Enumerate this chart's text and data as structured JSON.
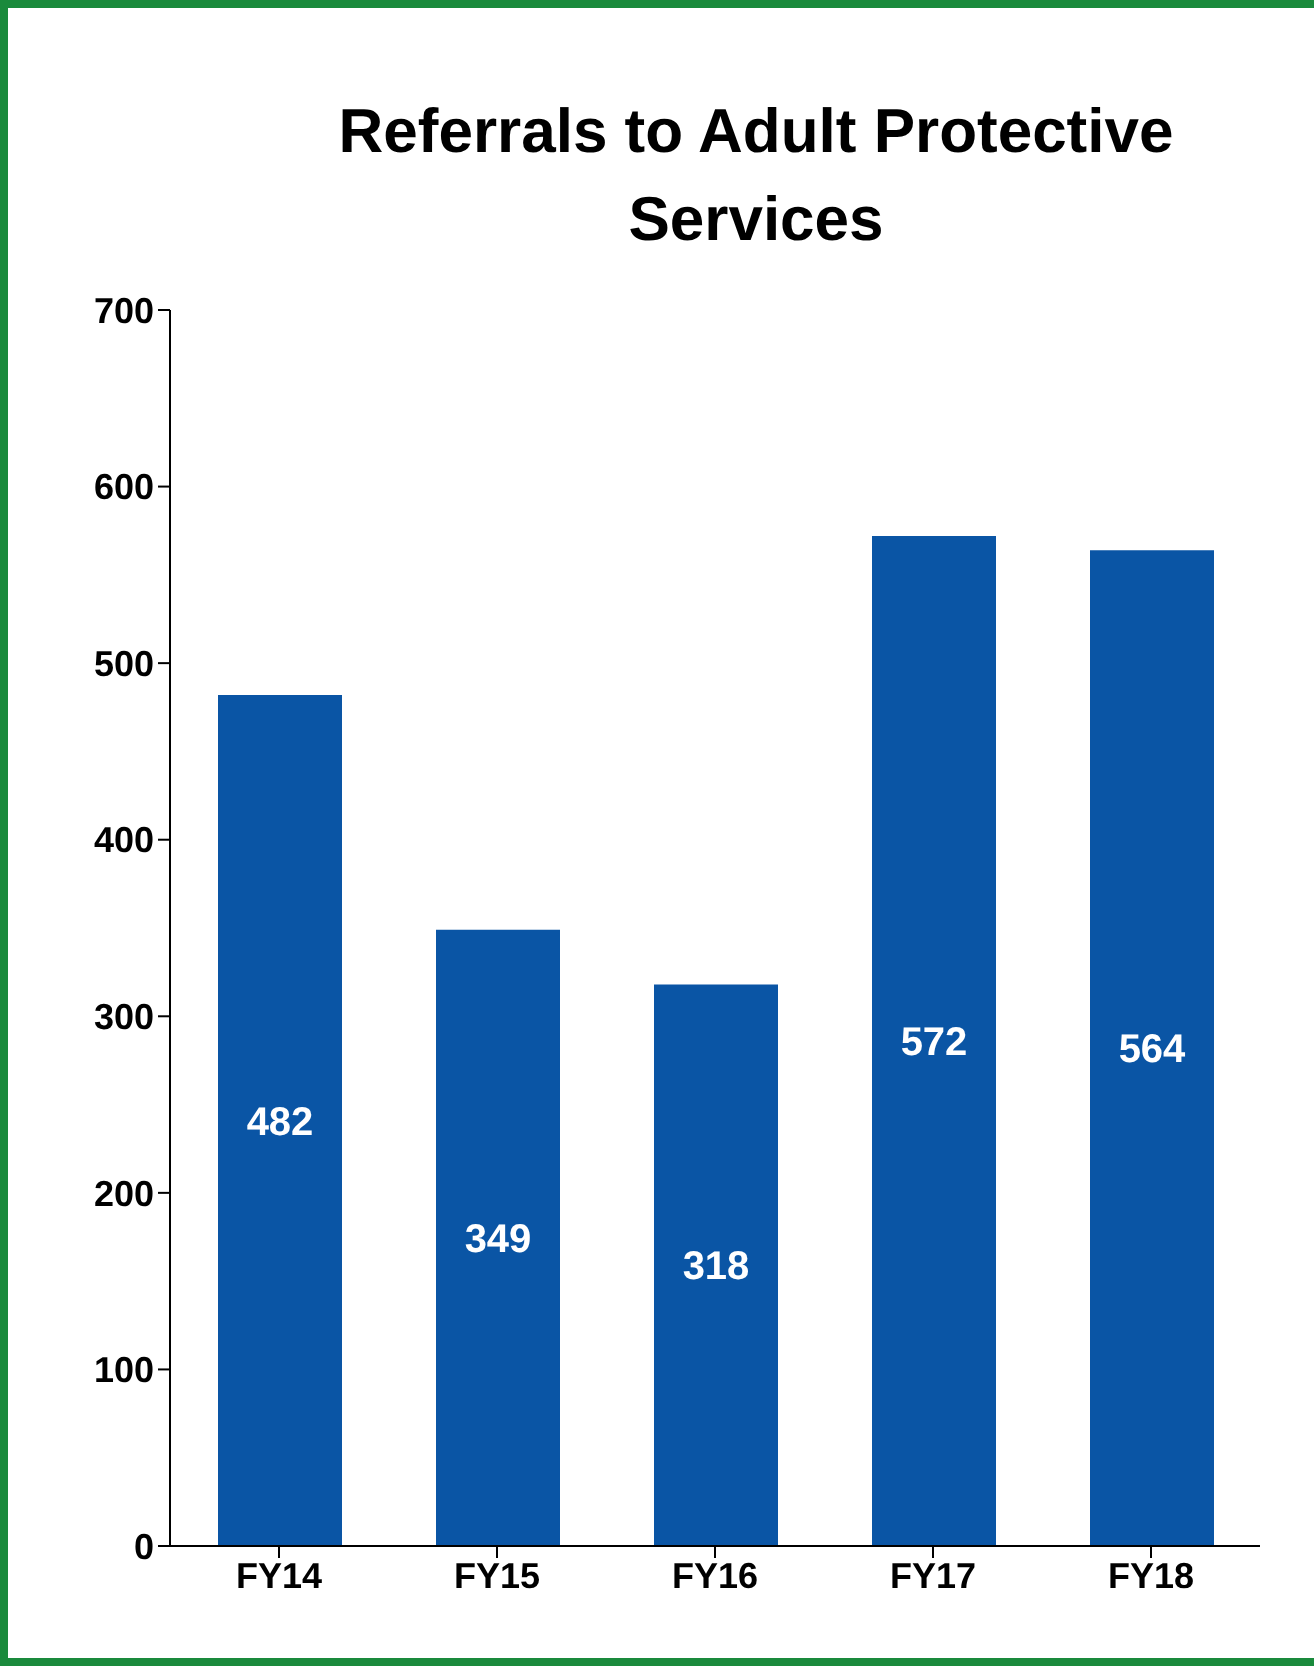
{
  "chart_data": {
    "type": "bar",
    "title": "Referrals to Adult Protective Services",
    "categories": [
      "FY14",
      "FY15",
      "FY16",
      "FY17",
      "FY18"
    ],
    "values": [
      482,
      349,
      318,
      572,
      564
    ],
    "color": "#0a55a5",
    "ylim": [
      0,
      700
    ],
    "yticks": [
      0,
      100,
      200,
      300,
      400,
      500,
      600,
      700
    ],
    "data_labels": true
  }
}
